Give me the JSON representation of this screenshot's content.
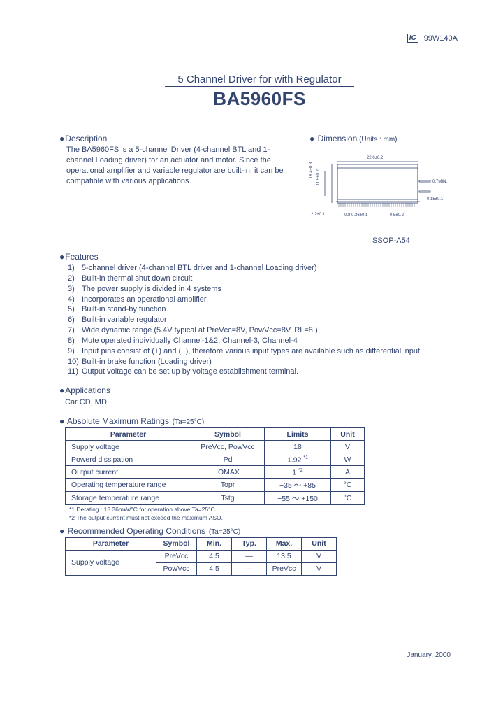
{
  "header": {
    "logo": "IC",
    "doc_code": "99W140A"
  },
  "title": {
    "line": "5 Channel Driver for with Regulator",
    "part": "BA5960FS"
  },
  "description": {
    "head": "Description",
    "text": "The BA5960FS is a 5-channel Driver (4-channel BTL and 1-channel Loading driver) for an actuator and motor.  Since the operational amplifier and variable regulator are built-in, it can be compatible with various applications."
  },
  "dimension": {
    "head": "Dimension",
    "units": " (Units : mm)",
    "pkg": "SSOP-A54"
  },
  "features": {
    "head": "Features",
    "items": [
      {
        "n": "1)",
        "t": "5-channel driver (4-channel BTL driver and 1-channel Loading driver)"
      },
      {
        "n": "2)",
        "t": "Built-in thermal shut down circuit"
      },
      {
        "n": "3)",
        "t": "The power supply is divided in 4 systems"
      },
      {
        "n": "4)",
        "t": "Incorporates an operational amplifier."
      },
      {
        "n": "5)",
        "t": "Built-in stand-by function"
      },
      {
        "n": "6)",
        "t": "Built-in variable regulator"
      },
      {
        "n": "7)",
        "t": "Wide dynamic range (5.4V typical at PreVcc=8V, PowVcc=8V, RL=8    )"
      },
      {
        "n": "8)",
        "t": "Mute operated individually Channel-1&2, Channel-3, Channel-4"
      },
      {
        "n": "9)",
        "t": "Input pins consist of (+) and (−), therefore various input types are available such as differential input."
      },
      {
        "n": "10)",
        "t": "Built-in brake function (Loading driver)"
      },
      {
        "n": "11)",
        "t": "Output voltage can be set up by voltage establishment terminal."
      }
    ]
  },
  "applications": {
    "head": "Applications",
    "text": "Car CD, MD"
  },
  "abs_max": {
    "head": "Absolute Maximum Ratings",
    "cond": " (Ta=25°C)",
    "cols": [
      "Parameter",
      "Symbol",
      "Limits",
      "Unit"
    ],
    "rows": [
      [
        "Supply voltage",
        "PreVcc, PowVcc",
        "18",
        "V"
      ],
      [
        "Powerd dissipation",
        "Pd",
        "1.92 *1",
        "W"
      ],
      [
        "Output current",
        "IOMAX",
        "1 *2",
        "A"
      ],
      [
        "Operating temperature range",
        "Topr",
        "−35 ～ +85",
        "°C"
      ],
      [
        "Storage temperature range",
        "Tstg",
        "−55 ～ +150",
        "°C"
      ]
    ],
    "notes": [
      "*1 Derating : 15.36mW/°C for operation above Ta=25°C.",
      "*2 The output current must not exceed the maximum ASO."
    ]
  },
  "rec_op": {
    "head": "Recommended Operating Conditions",
    "cond": " (Ta=25°C)",
    "cols": [
      "Parameter",
      "Symbol",
      "Min.",
      "Typ.",
      "Max.",
      "Unit"
    ],
    "rows": [
      [
        "Supply voltage",
        "PreVcc",
        "4.5",
        "―",
        "13.5",
        "V"
      ],
      [
        "",
        "PowVcc",
        "4.5",
        "―",
        "PreVcc",
        "V"
      ]
    ]
  },
  "date": "January, 2000",
  "colors": {
    "text": "#33446f",
    "border": "#33446f",
    "bg": "#ffffff"
  },
  "dim_labels": {
    "top": "22.0±0.2",
    "left1": "18.4±0.3",
    "left2": "11.5±0.2",
    "right1": "0.7MIN.",
    "right2": "0.15±0.1",
    "bot1": "2.2±0.1",
    "bot2": "0.8 0.36±0.1",
    "bot3": "0.5±0.2"
  }
}
